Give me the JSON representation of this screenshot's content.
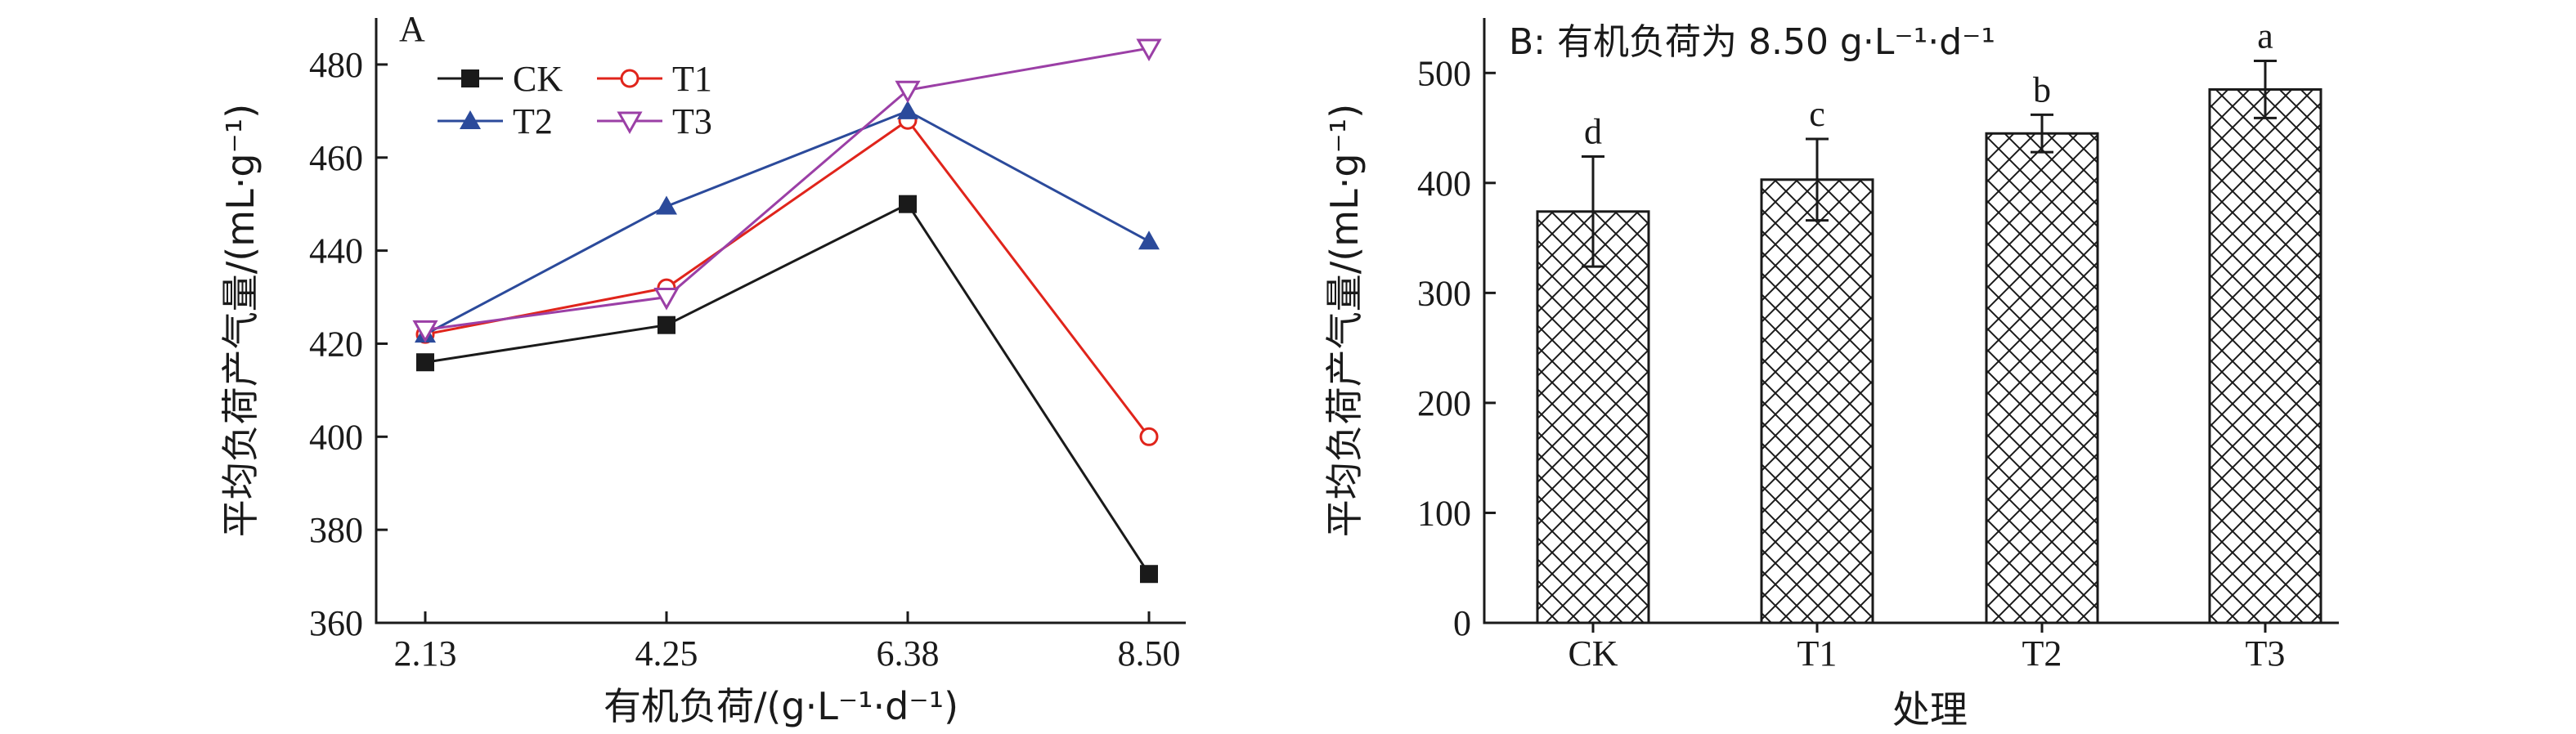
{
  "chart_data": [
    {
      "panel": "A",
      "type": "line",
      "x": [
        "2.13",
        "4.25",
        "6.38",
        "8.50"
      ],
      "xlabel": "有机负荷/(g·L⁻¹·d⁻¹)",
      "ylabel": "平均负荷产气量/(mL·g⁻¹)",
      "ylim": [
        360,
        490
      ],
      "yticks": [
        360,
        380,
        400,
        420,
        440,
        460,
        480
      ],
      "legend_position": "top-left",
      "series": [
        {
          "name": "CK",
          "values": [
            416,
            424,
            450,
            370.5
          ],
          "color": "#1a1a1a",
          "marker": "square-filled"
        },
        {
          "name": "T1",
          "values": [
            422,
            432,
            468,
            400
          ],
          "color": "#e0241b",
          "marker": "circle-open"
        },
        {
          "name": "T2",
          "values": [
            422,
            449.5,
            470,
            442
          ],
          "color": "#2b4a9b",
          "marker": "triangle-up-filled"
        },
        {
          "name": "T3",
          "values": [
            423,
            430,
            474.5,
            483.5
          ],
          "color": "#9b3fa6",
          "marker": "triangle-down-open"
        }
      ]
    },
    {
      "panel": "B",
      "type": "bar",
      "title": "B: 有机负荷为 8.50 g·L⁻¹·d⁻¹",
      "categories": [
        "CK",
        "T1",
        "T2",
        "T3"
      ],
      "values": [
        374,
        403,
        445,
        485
      ],
      "errors": [
        50,
        37,
        17,
        26
      ],
      "significance": [
        "d",
        "c",
        "b",
        "a"
      ],
      "xlabel": "处理",
      "ylabel": "平均负荷产气量/(mL·g⁻¹)",
      "ylim": [
        0,
        550
      ],
      "yticks": [
        0,
        100,
        200,
        300,
        400,
        500
      ],
      "pattern": "crosshatch"
    }
  ]
}
